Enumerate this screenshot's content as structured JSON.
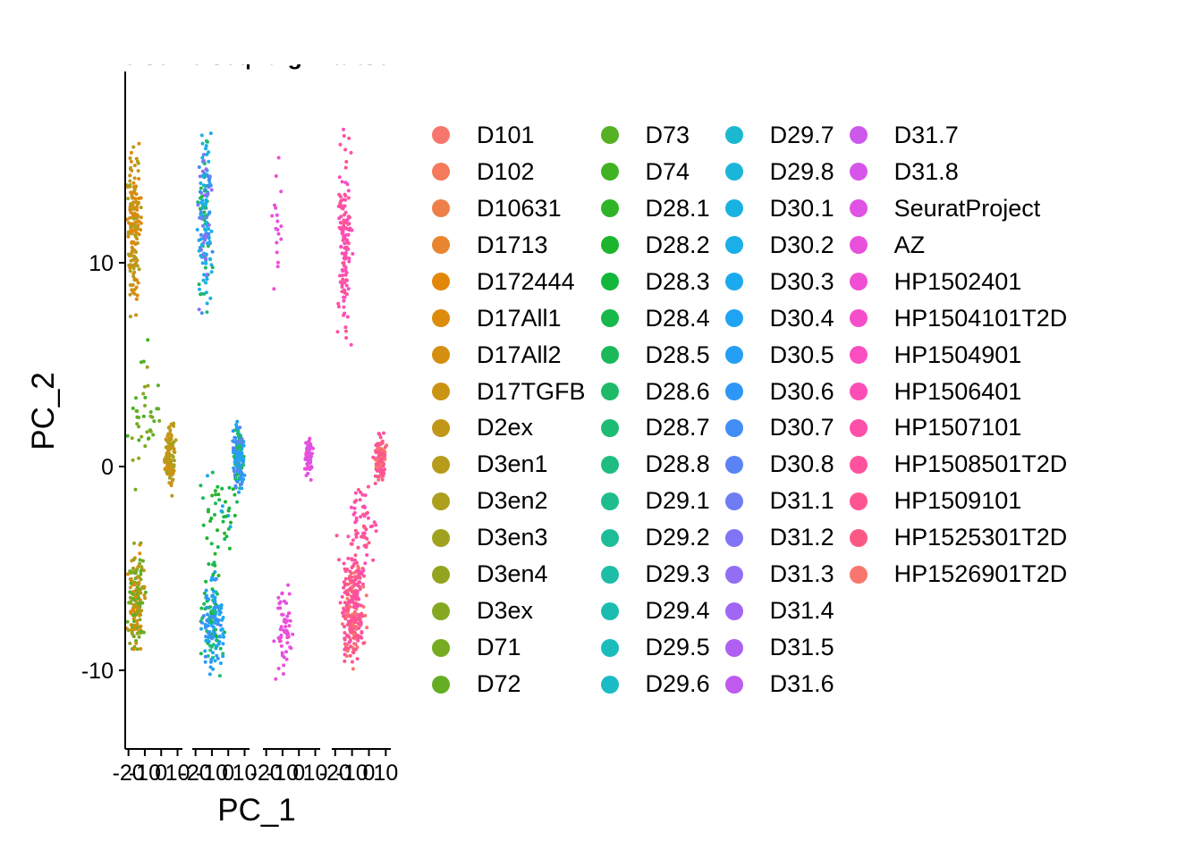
{
  "chart_data": {
    "type": "scatter",
    "xlabel": "PC_1",
    "ylabel": "PC_2",
    "ylim": [
      -13.5,
      19
    ],
    "yticks": [
      -10,
      0,
      10
    ],
    "grid": false,
    "legend_position": "right",
    "panels": [
      {
        "title": "elsen",
        "xlim": [
          -22,
          13
        ],
        "xticks": [
          -20,
          -10,
          0,
          10
        ]
      },
      {
        "title": "elseq",
        "xlim": [
          -22,
          13
        ],
        "xticks": [
          -20,
          -10,
          0,
          10
        ]
      },
      {
        "title": "dign",
        "xlim": [
          -22,
          13
        ],
        "xticks": [
          -20,
          -10,
          0,
          10
        ]
      },
      {
        "title": "artse",
        "xlim": [
          -22,
          13
        ],
        "xticks": [
          -20,
          -10,
          0,
          10
        ]
      }
    ],
    "series": [
      {
        "name": "D101",
        "color": "#F8766D"
      },
      {
        "name": "D102",
        "color": "#F47A5B"
      },
      {
        "name": "D10631",
        "color": "#EF7F49"
      },
      {
        "name": "D1713",
        "color": "#E9842F"
      },
      {
        "name": "D172444",
        "color": "#E3870A"
      },
      {
        "name": "D17All1",
        "color": "#DC8B0B"
      },
      {
        "name": "D17All2",
        "color": "#D48F10"
      },
      {
        "name": "D17TGFB",
        "color": "#CB9314"
      },
      {
        "name": "D2ex",
        "color": "#C29718"
      },
      {
        "name": "D3en1",
        "color": "#B79B1B"
      },
      {
        "name": "D3en2",
        "color": "#AC9F1E"
      },
      {
        "name": "D3en3",
        "color": "#A0A21F"
      },
      {
        "name": "D3en4",
        "color": "#93A520"
      },
      {
        "name": "D3ex",
        "color": "#85A822"
      },
      {
        "name": "D71",
        "color": "#76AB22"
      },
      {
        "name": "D72",
        "color": "#65AE23"
      },
      {
        "name": "D73",
        "color": "#54B124"
      },
      {
        "name": "D74",
        "color": "#42B225"
      },
      {
        "name": "D28.1",
        "color": "#2FB428"
      },
      {
        "name": "D28.2",
        "color": "#1CB52D"
      },
      {
        "name": "D28.3",
        "color": "#14B73C"
      },
      {
        "name": "D28.4",
        "color": "#18B84B"
      },
      {
        "name": "D28.5",
        "color": "#1CB95A"
      },
      {
        "name": "D28.6",
        "color": "#1EBA68"
      },
      {
        "name": "D28.7",
        "color": "#1EBB75"
      },
      {
        "name": "D28.8",
        "color": "#1FBC82"
      },
      {
        "name": "D29.1",
        "color": "#1FBD8E"
      },
      {
        "name": "D29.2",
        "color": "#1EBD9A"
      },
      {
        "name": "D29.3",
        "color": "#1DBDA6"
      },
      {
        "name": "D29.4",
        "color": "#1CBDB1"
      },
      {
        "name": "D29.5",
        "color": "#1BBCBC"
      },
      {
        "name": "D29.6",
        "color": "#1ABBC6"
      },
      {
        "name": "D29.7",
        "color": "#1AB9D0"
      },
      {
        "name": "D29.8",
        "color": "#1AB6D9"
      },
      {
        "name": "D30.1",
        "color": "#1AB3E1"
      },
      {
        "name": "D30.2",
        "color": "#1BAFE8"
      },
      {
        "name": "D30.3",
        "color": "#1CAAEE"
      },
      {
        "name": "D30.4",
        "color": "#1FA4F3"
      },
      {
        "name": "D30.5",
        "color": "#259EF5"
      },
      {
        "name": "D30.6",
        "color": "#2E96F6"
      },
      {
        "name": "D30.7",
        "color": "#428DF6"
      },
      {
        "name": "D30.8",
        "color": "#5A84F5"
      },
      {
        "name": "D31.1",
        "color": "#6F7CF4"
      },
      {
        "name": "D31.2",
        "color": "#8075F4"
      },
      {
        "name": "D31.3",
        "color": "#916EF3"
      },
      {
        "name": "D31.4",
        "color": "#A167F2"
      },
      {
        "name": "D31.5",
        "color": "#B060F1"
      },
      {
        "name": "D31.6",
        "color": "#BF5BEF"
      },
      {
        "name": "D31.7",
        "color": "#CC58EC"
      },
      {
        "name": "D31.8",
        "color": "#D655E8"
      },
      {
        "name": "SeuratProject",
        "color": "#E052E3"
      },
      {
        "name": "AZ",
        "color": "#E950DC"
      },
      {
        "name": "HP1502401",
        "color": "#F04FD4"
      },
      {
        "name": "HP1504101T2D",
        "color": "#F64ECB"
      },
      {
        "name": "HP1504901",
        "color": "#FA4EC1"
      },
      {
        "name": "HP1506401",
        "color": "#FD4EB6"
      },
      {
        "name": "HP1507101",
        "color": "#FE50AA"
      },
      {
        "name": "HP1508501T2D",
        "color": "#FE529E"
      },
      {
        "name": "HP1509101",
        "color": "#FD5591"
      },
      {
        "name": "HP1525301T2D",
        "color": "#FB5984"
      },
      {
        "name": "HP1526901T2D",
        "color": "#F8766D"
      }
    ]
  }
}
